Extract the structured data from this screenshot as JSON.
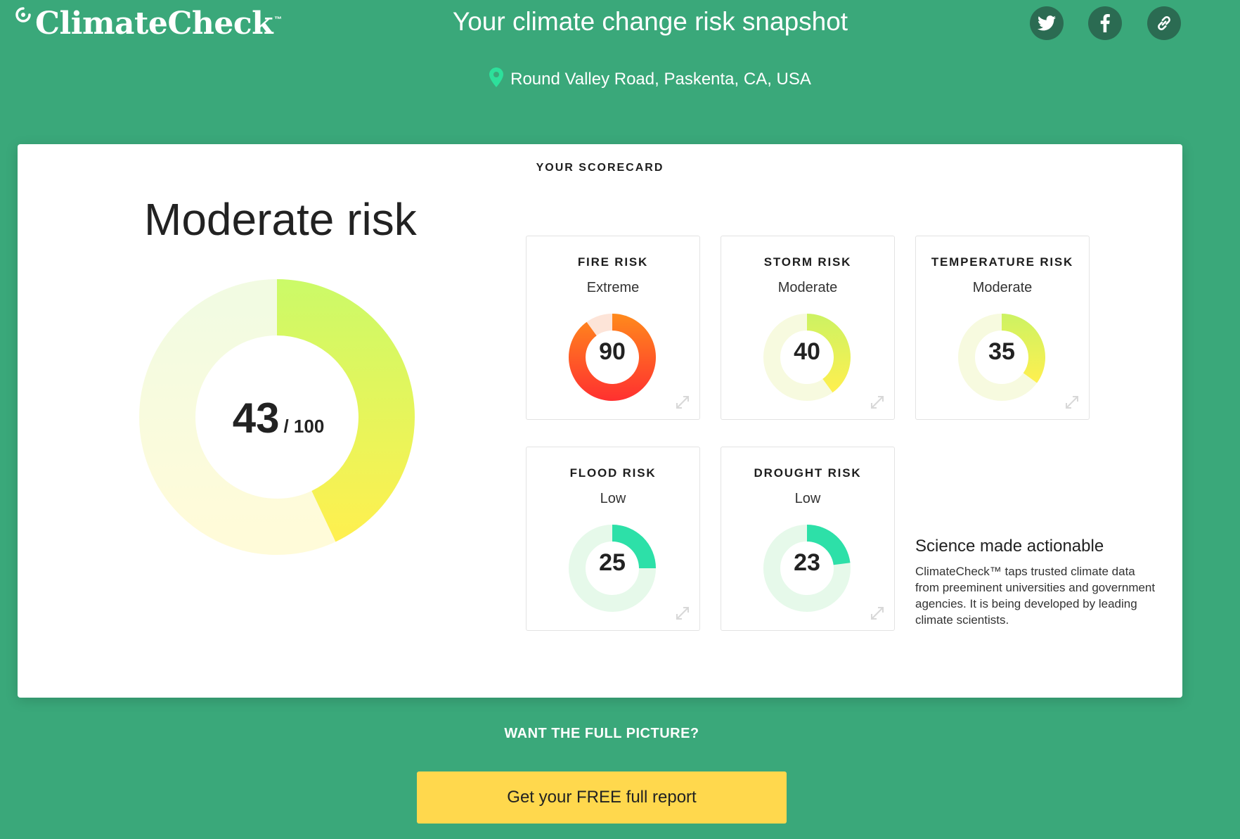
{
  "header": {
    "logo_text": "ClimateCheck",
    "logo_tm": "™",
    "headline": "Your climate change risk snapshot",
    "location": "Round Valley Road, Paskenta, CA, USA",
    "social": [
      {
        "name": "twitter-icon"
      },
      {
        "name": "facebook-icon"
      },
      {
        "name": "link-icon"
      }
    ]
  },
  "scorecard": {
    "label": "YOUR SCORECARD",
    "overall": {
      "level": "Moderate risk",
      "score": "43",
      "max": "/ 100",
      "fraction": 0.43
    },
    "tiles": [
      {
        "title": "FIRE RISK",
        "level": "Extreme",
        "score": "90",
        "fraction": 0.9,
        "colors": [
          "#ff8a1c",
          "#ff3030"
        ],
        "track": "#fde4d8"
      },
      {
        "title": "STORM RISK",
        "level": "Moderate",
        "score": "40",
        "fraction": 0.4,
        "colors": [
          "#ccf263",
          "#fff04f"
        ],
        "track": "#f7fadf"
      },
      {
        "title": "TEMPERATURE RISK",
        "level": "Moderate",
        "score": "35",
        "fraction": 0.35,
        "colors": [
          "#ccf263",
          "#fff04f"
        ],
        "track": "#f7fadf"
      },
      {
        "title": "FLOOD RISK",
        "level": "Low",
        "score": "25",
        "fraction": 0.25,
        "colors": [
          "#2de0a8",
          "#2de0a8"
        ],
        "track": "#e6f9ea"
      },
      {
        "title": "DROUGHT RISK",
        "level": "Low",
        "score": "23",
        "fraction": 0.23,
        "colors": [
          "#2de0a8",
          "#2de0a8"
        ],
        "track": "#e6f9ea"
      }
    ]
  },
  "science": {
    "title": "Science made actionable",
    "body": "ClimateCheck™ taps trusted climate data from preeminent universities and government agencies. It is being developed by leading climate scientists."
  },
  "cta": {
    "prompt": "WANT THE FULL PICTURE?",
    "button_label": "Get your FREE full report"
  },
  "colors": {
    "background": "#3aa87a",
    "button": "#ffd84d"
  }
}
